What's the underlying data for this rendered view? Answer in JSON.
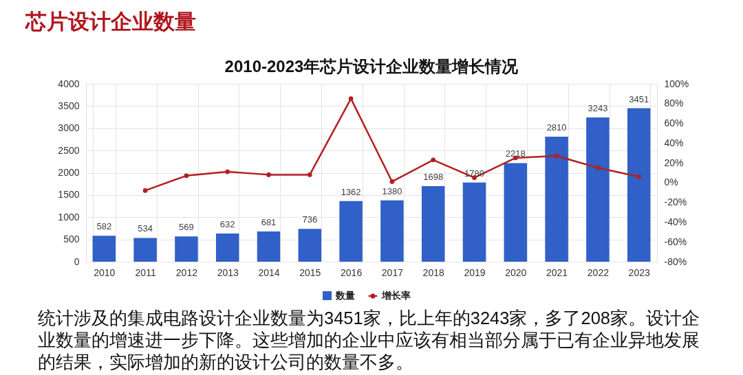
{
  "chart_data": {
    "type": "bar",
    "title": "芯片设计企业数量",
    "subtitle": "2010-2023年芯片设计企业数量增长情况",
    "categories": [
      "2010",
      "2011",
      "2012",
      "2013",
      "2014",
      "2015",
      "2016",
      "2017",
      "2018",
      "2019",
      "2020",
      "2021",
      "2022",
      "2023"
    ],
    "series": [
      {
        "name": "数量",
        "color": "#3060c8",
        "values": [
          582,
          534,
          569,
          632,
          681,
          736,
          1362,
          1380,
          1698,
          1780,
          2218,
          2810,
          3243,
          3451
        ],
        "value_labels": [
          "582",
          "534",
          "569",
          "632",
          "681",
          "736",
          "1362",
          "1380",
          "1698",
          "1780",
          "2218",
          "2810",
          "3243",
          "3451"
        ]
      },
      {
        "name": "增长率",
        "type": "line",
        "axis": "y2",
        "color": "#b22024",
        "values": [
          null,
          -8,
          7,
          11,
          8,
          8,
          85,
          1,
          23,
          5,
          25,
          27,
          15,
          6
        ]
      }
    ],
    "ylim": [
      0,
      4000
    ],
    "yticks": [
      0,
      500,
      1000,
      1500,
      2000,
      2500,
      3000,
      3500,
      4000
    ],
    "y2lim": [
      -80,
      100
    ],
    "y2ticks": [
      {
        "value": -80,
        "label": "-80%"
      },
      {
        "value": -60,
        "label": "-60%"
      },
      {
        "value": -40,
        "label": "-40%"
      },
      {
        "value": -20,
        "label": "-20%"
      },
      {
        "value": 0,
        "label": "0%"
      },
      {
        "value": 20,
        "label": "20%"
      },
      {
        "value": 40,
        "label": "40%"
      },
      {
        "value": 60,
        "label": "60%"
      },
      {
        "value": 80,
        "label": "80%"
      },
      {
        "value": 100,
        "label": "100%"
      }
    ],
    "grid": true,
    "legend": "bottom",
    "marker": "circle",
    "line_style": "solid",
    "annotations": [
      "统计涉及的集成电路设计企业数量为3451家，比上年的3243家，多了208家。设计企业数量的增速进一步下降。这些增加的企业中应该有相当部分属于已有企业异地发展的结果，实际增加的新的设计公司的数量不多。"
    ]
  }
}
